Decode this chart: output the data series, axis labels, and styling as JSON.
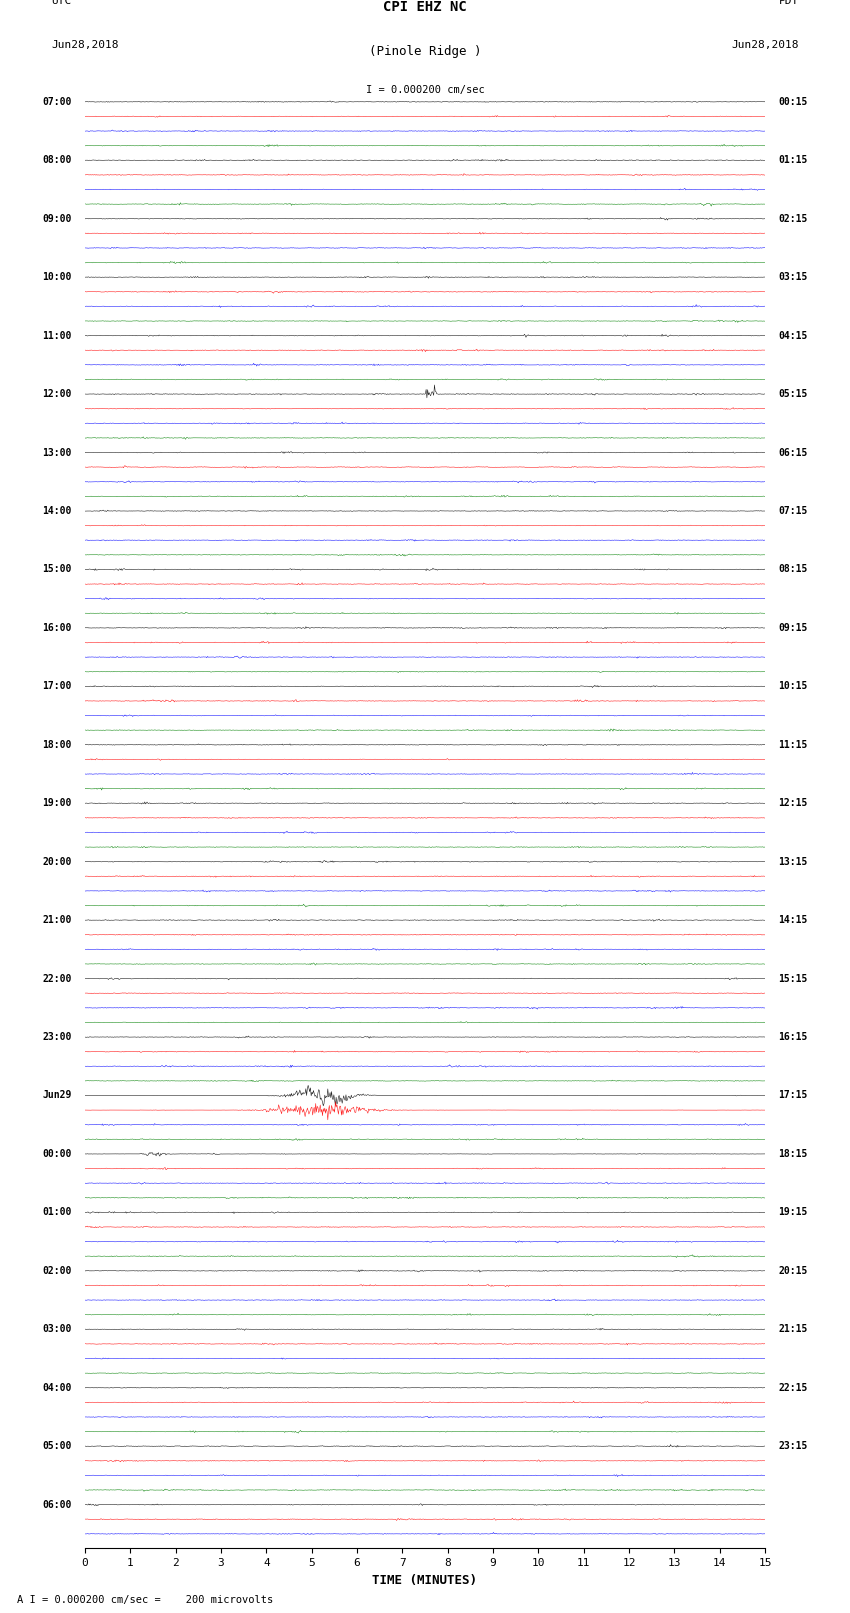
{
  "title_line1": "CPI EHZ NC",
  "title_line2": "(Pinole Ridge )",
  "scale_label": "I = 0.000200 cm/sec",
  "bottom_label": "A I = 0.000200 cm/sec =    200 microvolts",
  "xlabel": "TIME (MINUTES)",
  "n_rows": 99,
  "earthquake_row": 68,
  "earthquake_row2": 72,
  "noise_amplitude": 0.25,
  "big_quake_amplitude": 3.5,
  "fig_width": 8.5,
  "fig_height": 16.13,
  "bg_color": "white",
  "trace_color_cycle": [
    "black",
    "red",
    "blue",
    "green"
  ],
  "left_label_rows": [
    0,
    4,
    8,
    12,
    16,
    20,
    24,
    28,
    32,
    36,
    40,
    44,
    48,
    52,
    56,
    60,
    64,
    68,
    72,
    76,
    80,
    84,
    88,
    92,
    96
  ],
  "left_labels_text": [
    "07:00",
    "08:00",
    "09:00",
    "10:00",
    "11:00",
    "12:00",
    "13:00",
    "14:00",
    "15:00",
    "16:00",
    "17:00",
    "18:00",
    "19:00",
    "20:00",
    "21:00",
    "22:00",
    "23:00",
    "Jun29",
    "00:00",
    "01:00",
    "02:00",
    "03:00",
    "04:00",
    "05:00",
    "06:00"
  ],
  "right_labels_text": [
    "00:15",
    "01:15",
    "02:15",
    "03:15",
    "04:15",
    "05:15",
    "06:15",
    "07:15",
    "08:15",
    "09:15",
    "10:15",
    "11:15",
    "12:15",
    "13:15",
    "14:15",
    "15:15",
    "16:15",
    "17:15",
    "18:15",
    "19:15",
    "20:15",
    "21:15",
    "22:15",
    "23:15"
  ]
}
